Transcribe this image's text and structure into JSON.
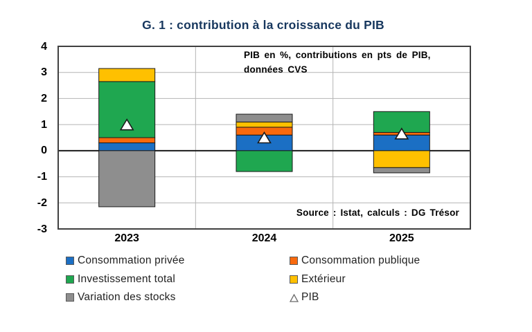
{
  "title": "G. 1 : contribution à la croissance du PIB",
  "annotation": {
    "line1": "PIB en %, contributions en pts de PIB,",
    "line2": "données CVS"
  },
  "source_note": "Source : Istat, calculs : DG Trésor",
  "colors": {
    "title": "#17375E",
    "background": "#FFFFFF",
    "axis_frame": "#404040",
    "gridline": "#B4B4B4",
    "zero_line": "#1A1A1A",
    "bar_border": "#1A1A1A",
    "marker_fill": "#FFFFFF",
    "blue": "#1B6FC4",
    "orange": "#F8690D",
    "green": "#1FA750",
    "yellow": "#FFC000",
    "gray": "#8E8E8E"
  },
  "chart_data": {
    "type": "bar",
    "stacked": true,
    "title": "G. 1 : contribution à la croissance du PIB",
    "unit_note": "PIB en %, contributions en pts de PIB, données CVS",
    "source": "Source : Istat, calculs : DG Trésor",
    "categories": [
      "2023",
      "2024",
      "2025"
    ],
    "series": [
      {
        "name": "Consommation privée",
        "color": "#1B6FC4",
        "values": [
          0.3,
          0.6,
          0.6
        ]
      },
      {
        "name": "Consommation publique",
        "color": "#F8690D",
        "values": [
          0.2,
          0.3,
          0.1
        ]
      },
      {
        "name": "Investissement total",
        "color": "#1FA750",
        "values": [
          2.15,
          -0.8,
          0.8
        ]
      },
      {
        "name": "Extérieur",
        "color": "#FFC000",
        "values": [
          0.5,
          0.2,
          -0.65
        ]
      },
      {
        "name": "Variation des stocks",
        "color": "#8E8E8E",
        "values": [
          -2.15,
          0.3,
          -0.2
        ]
      }
    ],
    "overlay_series": {
      "name": "PIB",
      "type": "scatter",
      "marker": "triangle-up",
      "marker_fill": "#FFFFFF",
      "values": [
        1.0,
        0.5,
        0.65
      ]
    },
    "ylim": [
      -3,
      4
    ],
    "yticks": [
      4,
      3,
      2,
      1,
      0,
      -1,
      -2,
      -3
    ],
    "grid": true,
    "legend_position": "bottom"
  },
  "legend": {
    "columns": [
      {
        "items": [
          {
            "label": "Consommation privée",
            "color": "#1B6FC4",
            "marker": "square"
          },
          {
            "label": "Investissement total",
            "color": "#1FA750",
            "marker": "square"
          },
          {
            "label": "Variation des stocks",
            "color": "#8E8E8E",
            "marker": "square"
          }
        ]
      },
      {
        "items": [
          {
            "label": "Consommation publique",
            "color": "#F8690D",
            "marker": "square"
          },
          {
            "label": "Extérieur",
            "color": "#FFC000",
            "marker": "square"
          },
          {
            "label": "PIB",
            "color": "#FFFFFF",
            "marker": "triangle"
          }
        ]
      }
    ]
  }
}
